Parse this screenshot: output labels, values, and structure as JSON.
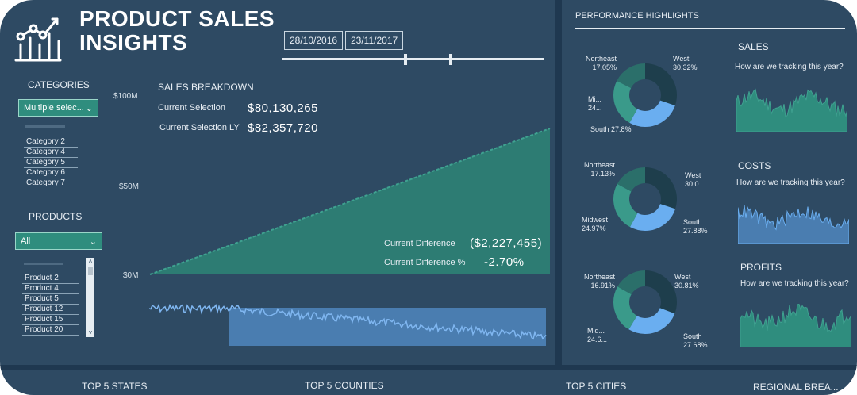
{
  "header": {
    "title_line1": "PRODUCT SALES",
    "title_line2": "INSIGHTS",
    "date_start": "28/10/2016",
    "date_end": "23/11/2017"
  },
  "categories": {
    "label": "CATEGORIES",
    "dropdown_value": "Multiple selec...",
    "items": [
      "Category 2",
      "Category 4",
      "Category 5",
      "Category 6",
      "Category 7"
    ]
  },
  "products": {
    "label": "PRODUCTS",
    "dropdown_value": "All",
    "items": [
      "Product 2",
      "Product 4",
      "Product 5",
      "Product 12",
      "Product 15",
      "Product 20"
    ]
  },
  "sales_breakdown": {
    "label": "SALES BREAKDOWN",
    "current_selection_label": "Current Selection",
    "current_selection_value": "$80,130,265",
    "current_selection_ly_label": "Current Selection LY",
    "current_selection_ly_value": "$82,357,720",
    "current_difference_label": "Current Difference",
    "current_difference_value": "($2,227,455)",
    "current_difference_pct_label": "Current Difference %",
    "current_difference_pct_value": "-2.70%",
    "y_ticks": [
      "$100M",
      "$50M",
      "$0M"
    ]
  },
  "performance": {
    "label": "PERFORMANCE HIGHLIGHTS",
    "donuts": [
      {
        "northeast": "Northeast",
        "northeast_pct": "17.05%",
        "west": "West",
        "west_pct": "30.32%",
        "midwest": "Mi...",
        "midwest_pct": "24...",
        "south": "South 27.8%"
      },
      {
        "northeast": "Northeast",
        "northeast_pct": "17.13%",
        "west": "West",
        "west_pct": "30.0...",
        "midwest": "Midwest",
        "midwest_pct": "24.97%",
        "south": "South",
        "south_pct": "27.88%"
      },
      {
        "northeast": "Northeast",
        "northeast_pct": "16.91%",
        "west": "West",
        "west_pct": "30.81%",
        "midwest": "Mid...",
        "midwest_pct": "24.6...",
        "south": "South",
        "south_pct": "27.68%"
      }
    ],
    "panels": [
      {
        "title": "SALES",
        "subtitle": "How are we tracking this year?"
      },
      {
        "title": "COSTS",
        "subtitle": "How are we tracking this year?"
      },
      {
        "title": "PROFITS",
        "subtitle": "How are we tracking this year?"
      }
    ]
  },
  "bottom": {
    "top_states": "TOP 5 STATES",
    "top_counties": "TOP 5 COUNTIES",
    "top_cities": "TOP 5 CITIES",
    "regional": "REGIONAL BREA..."
  },
  "colors": {
    "background": "#2e4a63",
    "teal": "#2f8d7e",
    "blue": "#6aaef0",
    "dark": "#1f3850"
  }
}
